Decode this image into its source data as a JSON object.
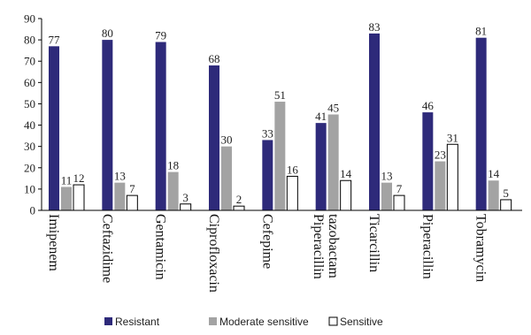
{
  "chart_data": {
    "type": "bar",
    "categories": [
      "Imipenem",
      "Ceftazidime",
      "Gentamicin",
      "Ciprofloxacin",
      "Cefepime",
      "Piperacillin tazobactam",
      "Ticarcillin",
      "Piperacillin",
      "Tobramycin"
    ],
    "category_lines": [
      [
        "Imipenem"
      ],
      [
        "Ceftazidime"
      ],
      [
        "Gentamicin"
      ],
      [
        "Ciprofloxacin"
      ],
      [
        "Cefepime"
      ],
      [
        "Piperacillin",
        "tazobactam"
      ],
      [
        "Ticarcillin"
      ],
      [
        "Piperacillin"
      ],
      [
        "Tobramycin"
      ]
    ],
    "series": [
      {
        "name": "Resistant",
        "color": "#2e2a7a",
        "values": [
          77,
          80,
          79,
          68,
          33,
          41,
          83,
          46,
          81
        ]
      },
      {
        "name": "Moderate sensitive",
        "color": "#a3a3a3",
        "values": [
          11,
          13,
          18,
          30,
          51,
          45,
          13,
          23,
          14
        ]
      },
      {
        "name": "Sensitive",
        "color": "#ffffff",
        "values": [
          12,
          7,
          3,
          2,
          16,
          14,
          7,
          31,
          5
        ]
      }
    ],
    "ylim": [
      0,
      90
    ],
    "yticks": [
      0,
      10,
      20,
      30,
      40,
      50,
      60,
      70,
      80,
      90
    ],
    "grid": false,
    "legend_position": "bottom"
  }
}
